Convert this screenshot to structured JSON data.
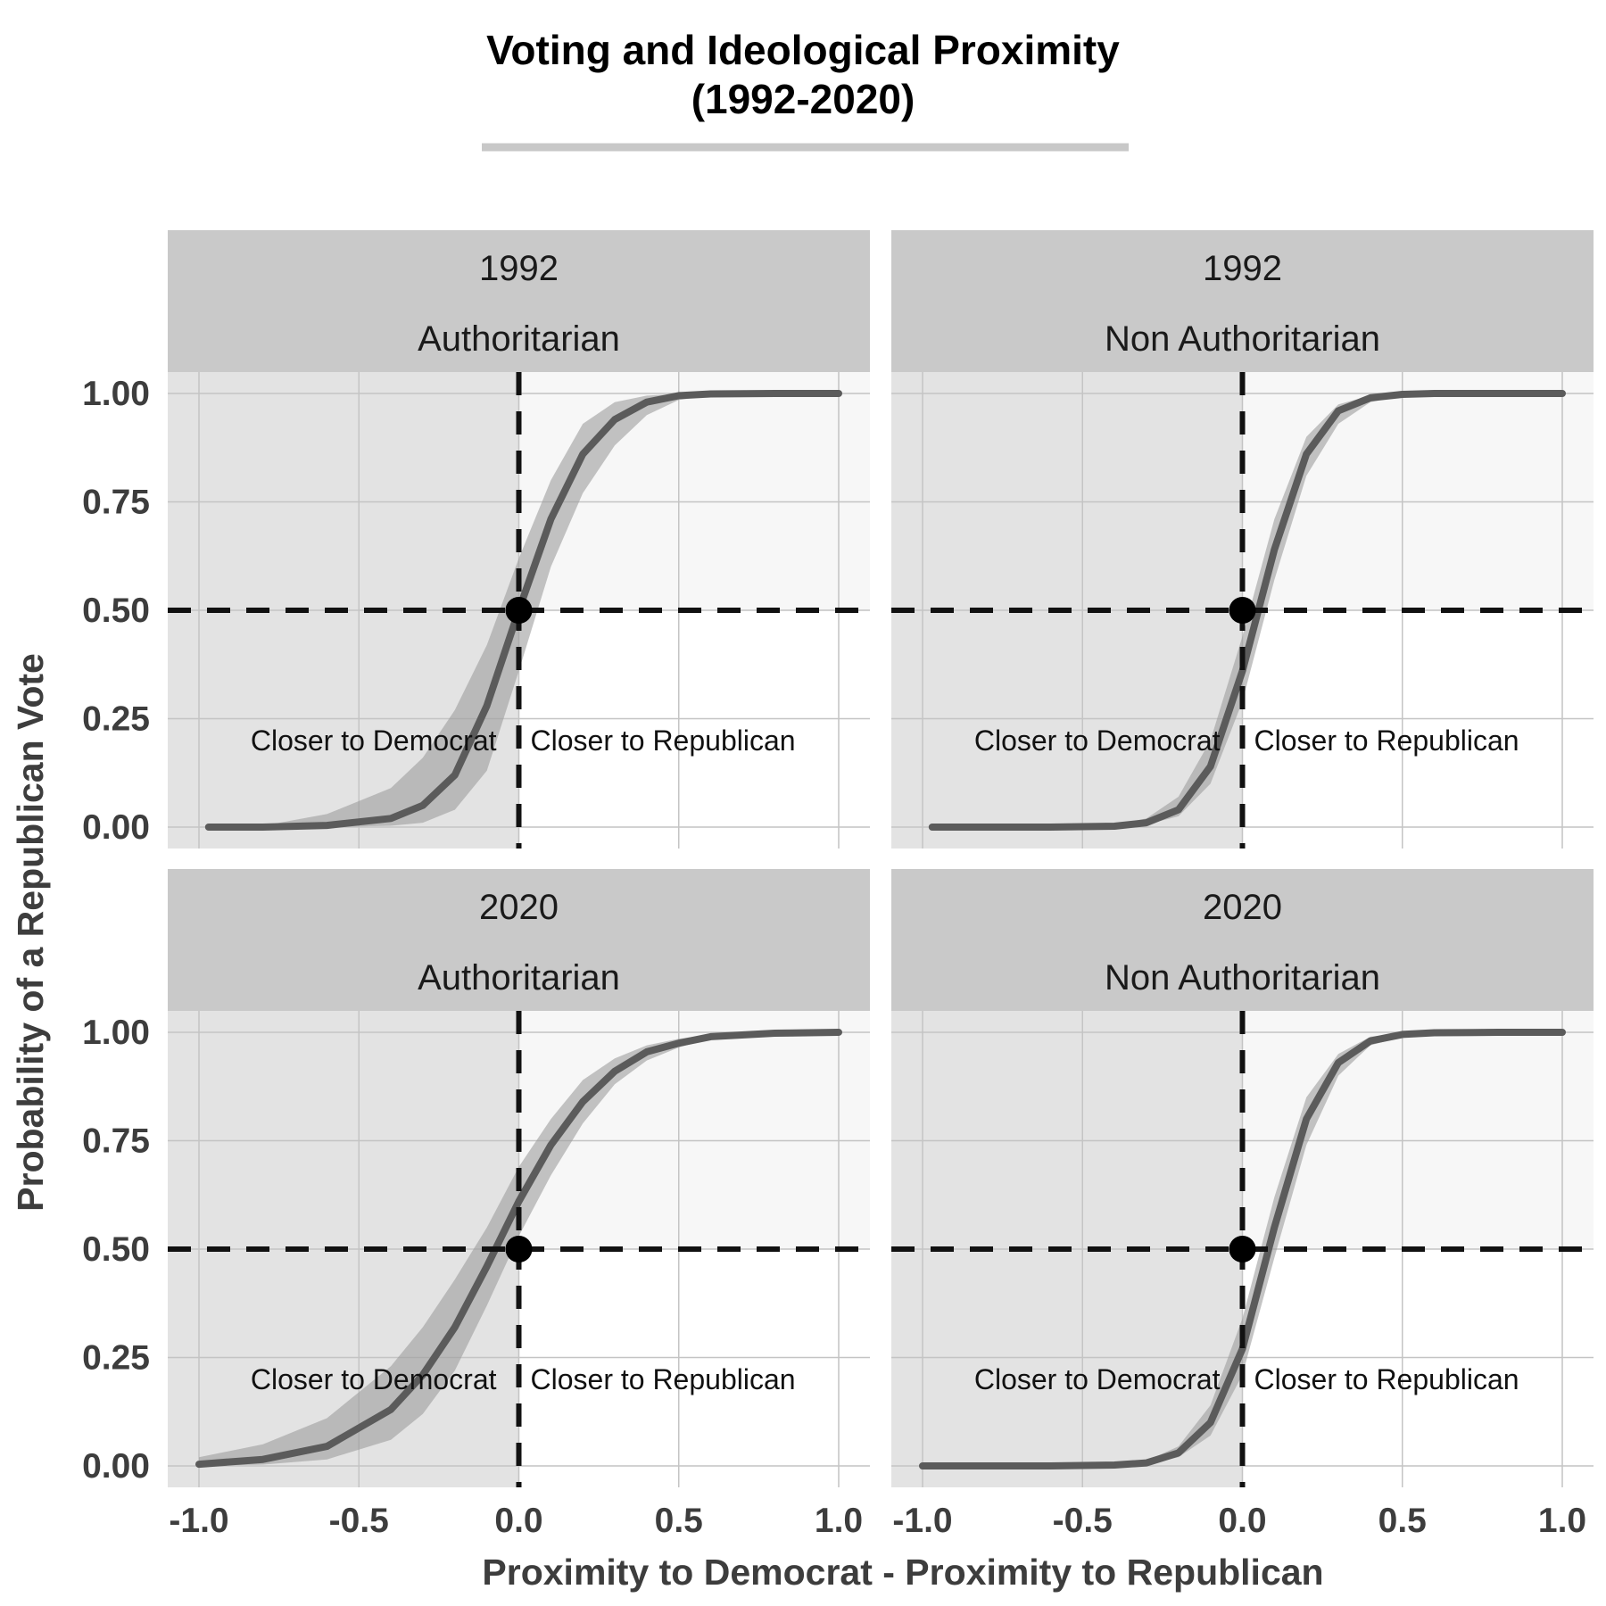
{
  "chart_data": {
    "type": "line",
    "title": "Voting and Ideological Proximity",
    "subtitle": "(1992-2020)",
    "xlabel": "Proximity to Democrat - Proximity to Republican",
    "ylabel": "Probability of a Republican Vote",
    "xlim": [
      -1.0,
      1.0
    ],
    "ylim": [
      0.0,
      1.0
    ],
    "x_ticks": [
      "-1.0",
      "-0.5",
      "0.0",
      "0.5",
      "1.0"
    ],
    "y_ticks": [
      "0.00",
      "0.25",
      "0.50",
      "0.75",
      "1.00"
    ],
    "reference_lines": {
      "x": 0.0,
      "y": 0.5,
      "style": "dashed"
    },
    "reference_point": {
      "x": 0.0,
      "y": 0.5
    },
    "shaded_regions": [
      "x < 0",
      "y > 0.5"
    ],
    "grid": true,
    "colors": {
      "line": "#5b5b5b",
      "ribbon": "#9d9d9d",
      "panel_shade": "#e3e3e3",
      "panel_light": "#f7f7f7",
      "strip": "#c9c9c9",
      "grid": "#c4c4c4",
      "reference": "#111111"
    },
    "panels": [
      {
        "year": "1992",
        "group": "Authoritarian",
        "left_label": "Closer to Democrat",
        "right_label": "Closer to Republican",
        "x": [
          -0.97,
          -0.8,
          -0.6,
          -0.4,
          -0.3,
          -0.2,
          -0.1,
          0.0,
          0.1,
          0.2,
          0.3,
          0.4,
          0.5,
          0.6,
          0.8,
          1.0
        ],
        "y": [
          0.0,
          0.0,
          0.004,
          0.02,
          0.05,
          0.12,
          0.28,
          0.5,
          0.71,
          0.86,
          0.94,
          0.98,
          0.995,
          0.999,
          1.0,
          1.0
        ],
        "lower": [
          0.0,
          0.0,
          0.0,
          0.003,
          0.01,
          0.04,
          0.13,
          0.36,
          0.6,
          0.77,
          0.88,
          0.95,
          0.985,
          0.995,
          1.0,
          1.0
        ],
        "upper": [
          0.0,
          0.003,
          0.03,
          0.09,
          0.16,
          0.27,
          0.42,
          0.62,
          0.8,
          0.93,
          0.98,
          0.995,
          0.999,
          1.0,
          1.0,
          1.0
        ]
      },
      {
        "year": "1992",
        "group": "Non Authoritarian",
        "left_label": "Closer to Democrat",
        "right_label": "Closer to Republican",
        "x": [
          -0.97,
          -0.6,
          -0.4,
          -0.3,
          -0.2,
          -0.1,
          0.0,
          0.1,
          0.2,
          0.3,
          0.4,
          0.5,
          0.6,
          0.8,
          1.0
        ],
        "y": [
          0.0,
          0.0,
          0.002,
          0.01,
          0.04,
          0.14,
          0.36,
          0.64,
          0.86,
          0.96,
          0.99,
          0.998,
          1.0,
          1.0,
          1.0
        ],
        "lower": [
          0.0,
          0.0,
          0.001,
          0.006,
          0.025,
          0.1,
          0.29,
          0.57,
          0.81,
          0.93,
          0.98,
          0.995,
          0.999,
          1.0,
          1.0
        ],
        "upper": [
          0.0,
          0.001,
          0.005,
          0.02,
          0.07,
          0.2,
          0.44,
          0.71,
          0.9,
          0.975,
          0.995,
          0.999,
          1.0,
          1.0,
          1.0
        ]
      },
      {
        "year": "2020",
        "group": "Authoritarian",
        "left_label": "Closer to Democrat",
        "right_label": "Closer to Republican",
        "x": [
          -1.0,
          -0.8,
          -0.6,
          -0.4,
          -0.3,
          -0.2,
          -0.1,
          0.0,
          0.1,
          0.2,
          0.3,
          0.4,
          0.5,
          0.6,
          0.8,
          1.0
        ],
        "y": [
          0.004,
          0.015,
          0.045,
          0.13,
          0.21,
          0.32,
          0.46,
          0.61,
          0.74,
          0.84,
          0.91,
          0.955,
          0.975,
          0.99,
          0.998,
          1.0
        ],
        "lower": [
          0.0,
          0.003,
          0.015,
          0.06,
          0.12,
          0.22,
          0.37,
          0.53,
          0.67,
          0.79,
          0.88,
          0.935,
          0.965,
          0.985,
          0.996,
          1.0
        ],
        "upper": [
          0.02,
          0.05,
          0.11,
          0.23,
          0.32,
          0.43,
          0.55,
          0.69,
          0.8,
          0.89,
          0.94,
          0.97,
          0.985,
          0.995,
          0.999,
          1.0
        ]
      },
      {
        "year": "2020",
        "group": "Non Authoritarian",
        "left_label": "Closer to Democrat",
        "right_label": "Closer to Republican",
        "x": [
          -1.0,
          -0.6,
          -0.4,
          -0.3,
          -0.2,
          -0.1,
          0.0,
          0.1,
          0.2,
          0.3,
          0.4,
          0.5,
          0.6,
          0.8,
          1.0
        ],
        "y": [
          0.0,
          0.0,
          0.002,
          0.007,
          0.03,
          0.1,
          0.27,
          0.55,
          0.8,
          0.93,
          0.98,
          0.995,
          0.999,
          1.0,
          1.0
        ],
        "lower": [
          0.0,
          0.0,
          0.001,
          0.004,
          0.02,
          0.07,
          0.21,
          0.48,
          0.74,
          0.9,
          0.97,
          0.99,
          0.998,
          1.0,
          1.0
        ],
        "upper": [
          0.0,
          0.001,
          0.004,
          0.012,
          0.045,
          0.14,
          0.34,
          0.62,
          0.85,
          0.95,
          0.99,
          0.998,
          1.0,
          1.0,
          1.0
        ]
      }
    ]
  }
}
